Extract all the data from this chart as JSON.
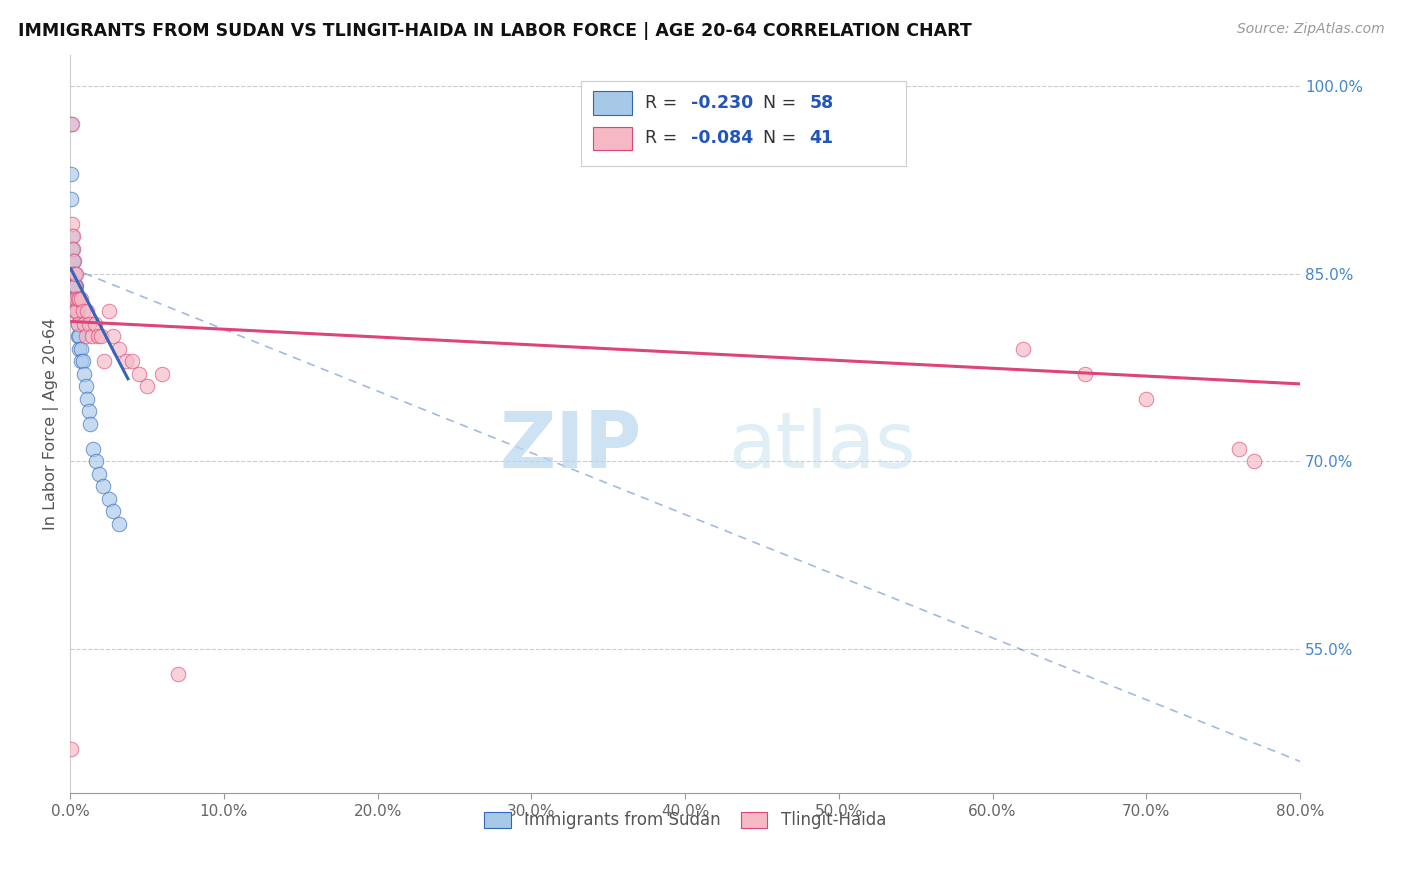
{
  "title": "IMMIGRANTS FROM SUDAN VS TLINGIT-HAIDA IN LABOR FORCE | AGE 20-64 CORRELATION CHART",
  "source": "Source: ZipAtlas.com",
  "ylabel": "In Labor Force | Age 20-64",
  "legend_label_1": "Immigrants from Sudan",
  "legend_label_2": "Tlingit-Haida",
  "r1": "-0.230",
  "n1": "58",
  "r2": "-0.084",
  "n2": "41",
  "color1": "#a8c8e8",
  "color2": "#f5b8c4",
  "trend1_color": "#3366bb",
  "trend2_color": "#dd4477",
  "xlim": [
    0.0,
    0.8
  ],
  "ylim": [
    0.435,
    1.025
  ],
  "xticks": [
    0.0,
    0.1,
    0.2,
    0.3,
    0.4,
    0.5,
    0.6,
    0.7,
    0.8
  ],
  "yticks_right": [
    1.0,
    0.85,
    0.7,
    0.55
  ],
  "watermark_zip": "ZIP",
  "watermark_atlas": "atlas",
  "sudan_x": [
    0.0005,
    0.0005,
    0.0007,
    0.001,
    0.001,
    0.001,
    0.001,
    0.001,
    0.0015,
    0.0015,
    0.0015,
    0.0015,
    0.0015,
    0.002,
    0.002,
    0.002,
    0.002,
    0.002,
    0.002,
    0.002,
    0.002,
    0.002,
    0.0025,
    0.0025,
    0.0025,
    0.003,
    0.003,
    0.003,
    0.003,
    0.003,
    0.003,
    0.003,
    0.0035,
    0.0035,
    0.004,
    0.004,
    0.004,
    0.0045,
    0.005,
    0.005,
    0.005,
    0.006,
    0.006,
    0.007,
    0.007,
    0.008,
    0.009,
    0.01,
    0.011,
    0.012,
    0.013,
    0.015,
    0.017,
    0.019,
    0.021,
    0.025,
    0.028,
    0.032
  ],
  "sudan_y": [
    0.97,
    0.93,
    0.91,
    0.88,
    0.87,
    0.87,
    0.87,
    0.86,
    0.86,
    0.86,
    0.86,
    0.85,
    0.85,
    0.86,
    0.85,
    0.85,
    0.85,
    0.85,
    0.85,
    0.85,
    0.84,
    0.84,
    0.85,
    0.85,
    0.84,
    0.85,
    0.85,
    0.84,
    0.84,
    0.84,
    0.83,
    0.83,
    0.84,
    0.83,
    0.83,
    0.83,
    0.82,
    0.82,
    0.82,
    0.81,
    0.8,
    0.8,
    0.79,
    0.79,
    0.78,
    0.78,
    0.77,
    0.76,
    0.75,
    0.74,
    0.73,
    0.71,
    0.7,
    0.69,
    0.68,
    0.67,
    0.66,
    0.65
  ],
  "tlingit_x": [
    0.0005,
    0.001,
    0.001,
    0.0015,
    0.002,
    0.002,
    0.0025,
    0.003,
    0.003,
    0.003,
    0.0035,
    0.004,
    0.004,
    0.005,
    0.005,
    0.006,
    0.007,
    0.008,
    0.009,
    0.01,
    0.011,
    0.012,
    0.014,
    0.016,
    0.018,
    0.02,
    0.022,
    0.025,
    0.028,
    0.032,
    0.036,
    0.04,
    0.045,
    0.05,
    0.06,
    0.07,
    0.62,
    0.66,
    0.7,
    0.76,
    0.77
  ],
  "tlingit_y": [
    0.47,
    0.97,
    0.89,
    0.88,
    0.87,
    0.83,
    0.86,
    0.85,
    0.84,
    0.82,
    0.85,
    0.83,
    0.82,
    0.83,
    0.81,
    0.83,
    0.83,
    0.82,
    0.81,
    0.8,
    0.82,
    0.81,
    0.8,
    0.81,
    0.8,
    0.8,
    0.78,
    0.82,
    0.8,
    0.79,
    0.78,
    0.78,
    0.77,
    0.76,
    0.77,
    0.53,
    0.79,
    0.77,
    0.75,
    0.71,
    0.7
  ],
  "trend1_x0": 0.0,
  "trend1_y0": 0.855,
  "trend1_x1": 0.038,
  "trend1_y1": 0.765,
  "trend1_dash_x0": 0.0,
  "trend1_dash_y0": 0.855,
  "trend1_dash_x1": 0.8,
  "trend1_dash_y1": 0.46,
  "trend2_x0": 0.0,
  "trend2_y0": 0.812,
  "trend2_x1": 0.8,
  "trend2_y1": 0.762
}
